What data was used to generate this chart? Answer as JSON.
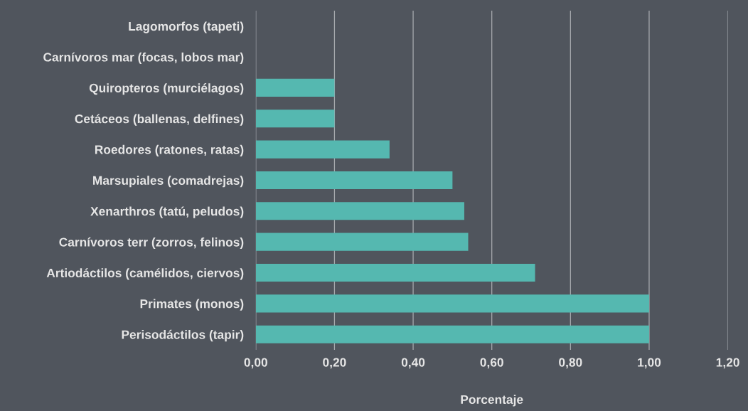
{
  "chart_data": {
    "type": "bar",
    "orientation": "horizontal",
    "xlabel": "Porcentaje",
    "categories": [
      "Lagomorfos (tapeti)",
      "Carnívoros mar (focas, lobos mar)",
      "Quiropteros (murciélagos)",
      "Cetáceos (ballenas, delfines)",
      "Roedores (ratones, ratas)",
      "Marsupiales (comadrejas)",
      "Xenarthros (tatú, peludos)",
      "Carnívoros terr (zorros, felinos)",
      "Artiodáctilos (camélidos, ciervos)",
      "Primates (monos)",
      "Perisodáctilos (tapir)"
    ],
    "values": [
      0,
      0,
      0.2,
      0.2,
      0.34,
      0.5,
      0.53,
      0.54,
      0.71,
      1.0,
      1.0
    ],
    "color": "#55b8b0",
    "xlim": [
      0,
      1.2
    ],
    "xticks": [
      {
        "value": 0,
        "label": "0,00"
      },
      {
        "value": 0.2,
        "label": "0,20"
      },
      {
        "value": 0.4,
        "label": "0,40"
      },
      {
        "value": 0.6,
        "label": "0,60"
      },
      {
        "value": 0.8,
        "label": "0,80"
      },
      {
        "value": 1.0,
        "label": "1,00"
      },
      {
        "value": 1.2,
        "label": "1,20"
      }
    ],
    "grid": "x",
    "legend": false
  }
}
